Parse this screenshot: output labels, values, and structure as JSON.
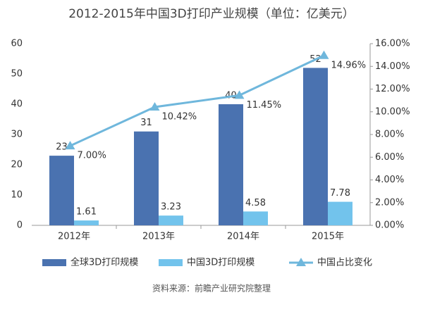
{
  "chart_data": {
    "type": "bar",
    "title": "2012-2015年中国3D打印产业规模（单位：亿美元）",
    "categories": [
      "2012年",
      "2013年",
      "2014年",
      "2015年"
    ],
    "series": [
      {
        "name": "全球3D打印规模",
        "type": "bar",
        "color": "#4a72b0",
        "values": [
          23,
          31,
          40,
          52
        ]
      },
      {
        "name": "中国3D打印规模",
        "type": "bar",
        "color": "#72c3ec",
        "values": [
          1.61,
          3.23,
          4.58,
          7.78
        ]
      },
      {
        "name": "中国占比变化",
        "type": "line",
        "axis": "y2",
        "color": "#6fb7dc",
        "values": [
          7.0,
          10.42,
          11.45,
          14.96
        ],
        "value_labels": [
          "7.00%",
          "10.42%",
          "11.45%",
          "14.96%"
        ]
      }
    ],
    "ylim": [
      0,
      60
    ],
    "yticks": [
      0,
      10,
      20,
      30,
      40,
      50,
      60
    ],
    "y2lim": [
      0,
      16
    ],
    "y2ticks": [
      {
        "value": 0,
        "label": "0.00%"
      },
      {
        "value": 2,
        "label": "2.00%"
      },
      {
        "value": 4,
        "label": "4.00%"
      },
      {
        "value": 6,
        "label": "6.00%"
      },
      {
        "value": 8,
        "label": "8.00%"
      },
      {
        "value": 10,
        "label": "10.00%"
      },
      {
        "value": 12,
        "label": "12.00%"
      },
      {
        "value": 14,
        "label": "14.00%"
      },
      {
        "value": 16,
        "label": "16.00%"
      }
    ],
    "grid": false,
    "source": "资料来源：前瞻产业研究院整理"
  }
}
